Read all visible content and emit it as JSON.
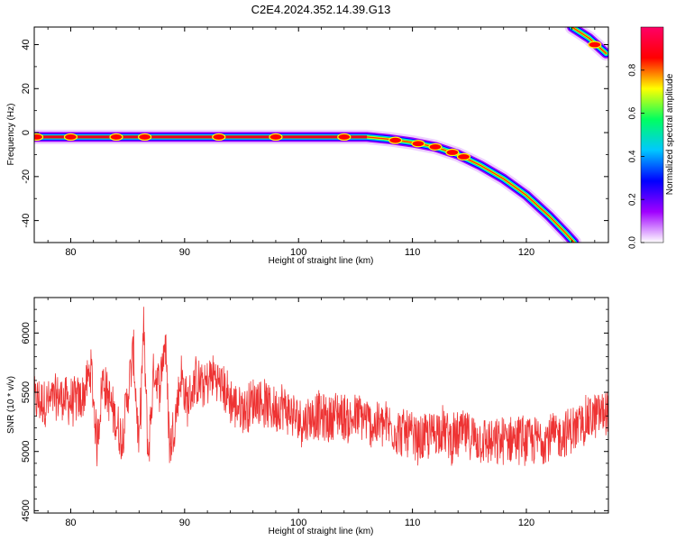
{
  "figure": {
    "title": "C2E4.2024.352.14.39.G13"
  },
  "chart_data": [
    {
      "type": "heatmap",
      "xlabel": "Height of straight line (km)",
      "ylabel": "Frequency (Hz)",
      "xlim": [
        76.8,
        127.2
      ],
      "ylim": [
        -50,
        48
      ],
      "xticks": [
        80,
        90,
        100,
        110,
        120
      ],
      "yticks": [
        -40,
        -20,
        0,
        20,
        40
      ],
      "colorbar": {
        "label": "Normalized spectral amplitude",
        "range": [
          0.0,
          1.0
        ],
        "ticks": [
          0.0,
          0.2,
          0.4,
          0.6,
          0.8
        ],
        "colors": [
          "#ffffff",
          "#a000ff",
          "#0000ff",
          "#00c8ff",
          "#00ff60",
          "#ffff00",
          "#ff0000",
          "#ff0066"
        ]
      },
      "trace": [
        {
          "x": 76.8,
          "f": -2
        },
        {
          "x": 106.0,
          "f": -2
        },
        {
          "x": 108.0,
          "f": -3
        },
        {
          "x": 110.0,
          "f": -4.5
        },
        {
          "x": 112.0,
          "f": -6.5
        },
        {
          "x": 114.0,
          "f": -10
        },
        {
          "x": 116.0,
          "f": -15
        },
        {
          "x": 118.0,
          "f": -21
        },
        {
          "x": 120.0,
          "f": -28.5
        },
        {
          "x": 122.0,
          "f": -38
        },
        {
          "x": 123.5,
          "f": -46
        },
        {
          "x": 124.2,
          "f": -50
        }
      ],
      "trace2": [
        {
          "x": 124.0,
          "f": 48
        },
        {
          "x": 125.5,
          "f": 43
        },
        {
          "x": 127.0,
          "f": 36
        }
      ],
      "hotspots": [
        {
          "x": 77.0,
          "f": -2
        },
        {
          "x": 80.0,
          "f": -2
        },
        {
          "x": 84.0,
          "f": -2
        },
        {
          "x": 86.5,
          "f": -2
        },
        {
          "x": 93.0,
          "f": -2
        },
        {
          "x": 98.0,
          "f": -2
        },
        {
          "x": 104.0,
          "f": -2
        },
        {
          "x": 108.5,
          "f": -3.5
        },
        {
          "x": 110.5,
          "f": -5
        },
        {
          "x": 112.0,
          "f": -6.5
        },
        {
          "x": 113.5,
          "f": -9
        },
        {
          "x": 114.5,
          "f": -11
        },
        {
          "x": 126.0,
          "f": 40
        }
      ]
    },
    {
      "type": "line",
      "xlabel": "Height of straight line (km)",
      "ylabel": "SNR (10 * v/v)",
      "xlim": [
        76.8,
        127.2
      ],
      "ylim": [
        4480,
        6300
      ],
      "xticks": [
        80,
        90,
        100,
        110,
        120
      ],
      "yticks": [
        4500,
        5000,
        5500,
        6000
      ],
      "color": "#ee3333",
      "series": [
        {
          "x": [
            77,
            78,
            79,
            80,
            81,
            81.8,
            82.3,
            82.8,
            83.5,
            84.5,
            85.5,
            86,
            86.4,
            86.8,
            87.3,
            87.8,
            88.3,
            88.7,
            89.2,
            89.7,
            90.2,
            91,
            91.7,
            92.5,
            93.3,
            94.3,
            95.3,
            96.3,
            97.3,
            98,
            98.5,
            99.5,
            100.5,
            101.5,
            102.5,
            103.5,
            104.5,
            105.5,
            106.5,
            107.5,
            108.5,
            109.5,
            110.5,
            111.5,
            112.5,
            113.5,
            114.5,
            115.5,
            116.5,
            117.5,
            118.5,
            119.5,
            120.5,
            121.5,
            122.5,
            123.5,
            124.5,
            125.5,
            126.5,
            127.2
          ],
          "y": [
            5430,
            5410,
            5460,
            5420,
            5440,
            5700,
            5050,
            5620,
            5400,
            5100,
            5850,
            5000,
            6050,
            4950,
            5700,
            5550,
            5950,
            5020,
            5300,
            5650,
            5400,
            5600,
            5550,
            5650,
            5550,
            5400,
            5350,
            5450,
            5380,
            5350,
            5400,
            5300,
            5250,
            5320,
            5260,
            5330,
            5260,
            5300,
            5220,
            5230,
            5180,
            5150,
            5080,
            5130,
            5200,
            5100,
            5150,
            5120,
            5080,
            5060,
            5120,
            5110,
            5080,
            5120,
            5120,
            5160,
            5200,
            5280,
            5320,
            5350
          ]
        }
      ]
    }
  ]
}
